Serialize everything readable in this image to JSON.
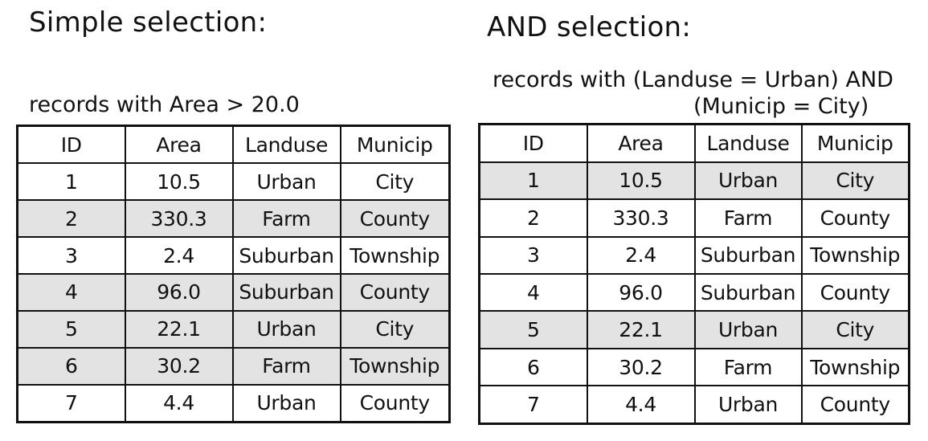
{
  "left": {
    "heading": "Simple selection:",
    "query": "records with Area > 20.0",
    "headers": [
      "ID",
      "Area",
      "Landuse",
      "Municip"
    ],
    "rows": [
      {
        "id": "1",
        "area": "10.5",
        "landuse": "Urban",
        "municip": "City",
        "selected": false
      },
      {
        "id": "2",
        "area": "330.3",
        "landuse": "Farm",
        "municip": "County",
        "selected": true
      },
      {
        "id": "3",
        "area": "2.4",
        "landuse": "Suburban",
        "municip": "Township",
        "selected": false
      },
      {
        "id": "4",
        "area": "96.0",
        "landuse": "Suburban",
        "municip": "County",
        "selected": true
      },
      {
        "id": "5",
        "area": "22.1",
        "landuse": "Urban",
        "municip": "City",
        "selected": true
      },
      {
        "id": "6",
        "area": "30.2",
        "landuse": "Farm",
        "municip": "Township",
        "selected": true
      },
      {
        "id": "7",
        "area": "4.4",
        "landuse": "Urban",
        "municip": "County",
        "selected": false
      }
    ]
  },
  "right": {
    "heading": "AND  selection:",
    "query_line1": "records with (Landuse = Urban) AND",
    "query_line2": "(Municip = City)",
    "headers": [
      "ID",
      "Area",
      "Landuse",
      "Municip"
    ],
    "rows": [
      {
        "id": "1",
        "area": "10.5",
        "landuse": "Urban",
        "municip": "City",
        "selected": true
      },
      {
        "id": "2",
        "area": "330.3",
        "landuse": "Farm",
        "municip": "County",
        "selected": false
      },
      {
        "id": "3",
        "area": "2.4",
        "landuse": "Suburban",
        "municip": "Township",
        "selected": false
      },
      {
        "id": "4",
        "area": "96.0",
        "landuse": "Suburban",
        "municip": "County",
        "selected": false
      },
      {
        "id": "5",
        "area": "22.1",
        "landuse": "Urban",
        "municip": "City",
        "selected": true
      },
      {
        "id": "6",
        "area": "30.2",
        "landuse": "Farm",
        "municip": "Township",
        "selected": false
      },
      {
        "id": "7",
        "area": "4.4",
        "landuse": "Urban",
        "municip": "County",
        "selected": false
      }
    ]
  },
  "colors": {
    "selected_fill": "#e3e3e3",
    "line": "#111111"
  }
}
